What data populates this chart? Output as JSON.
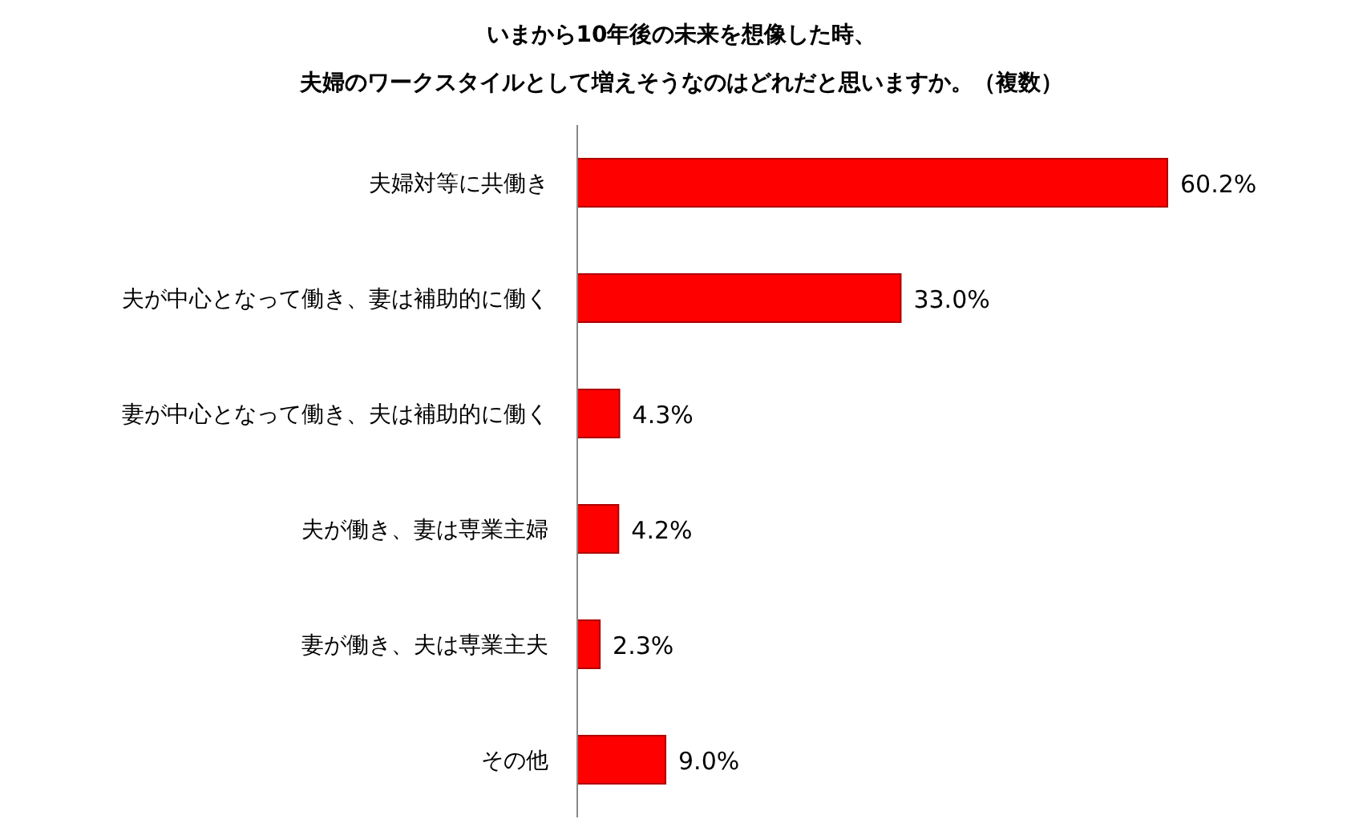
{
  "chart_data": {
    "type": "bar",
    "orientation": "horizontal",
    "title": "いまから10年後の未来を想像した時、",
    "subtitle": "夫婦のワークスタイルとして増えそうなのはどれだと思いますか。（複数）",
    "categories": [
      "夫婦対等に共働き",
      "夫が中心となって働き、妻は補助的に働く",
      "妻が中心となって働き、夫は補助的に働く",
      "夫が働き、妻は専業主婦",
      "妻が働き、夫は専業主夫",
      "その他"
    ],
    "values": [
      60.2,
      33.0,
      4.3,
      4.2,
      2.3,
      9.0
    ],
    "value_labels": [
      "60.2%",
      "33.0%",
      "4.3%",
      "4.2%",
      "2.3%",
      "9.0%"
    ],
    "color": "#ff0000"
  }
}
